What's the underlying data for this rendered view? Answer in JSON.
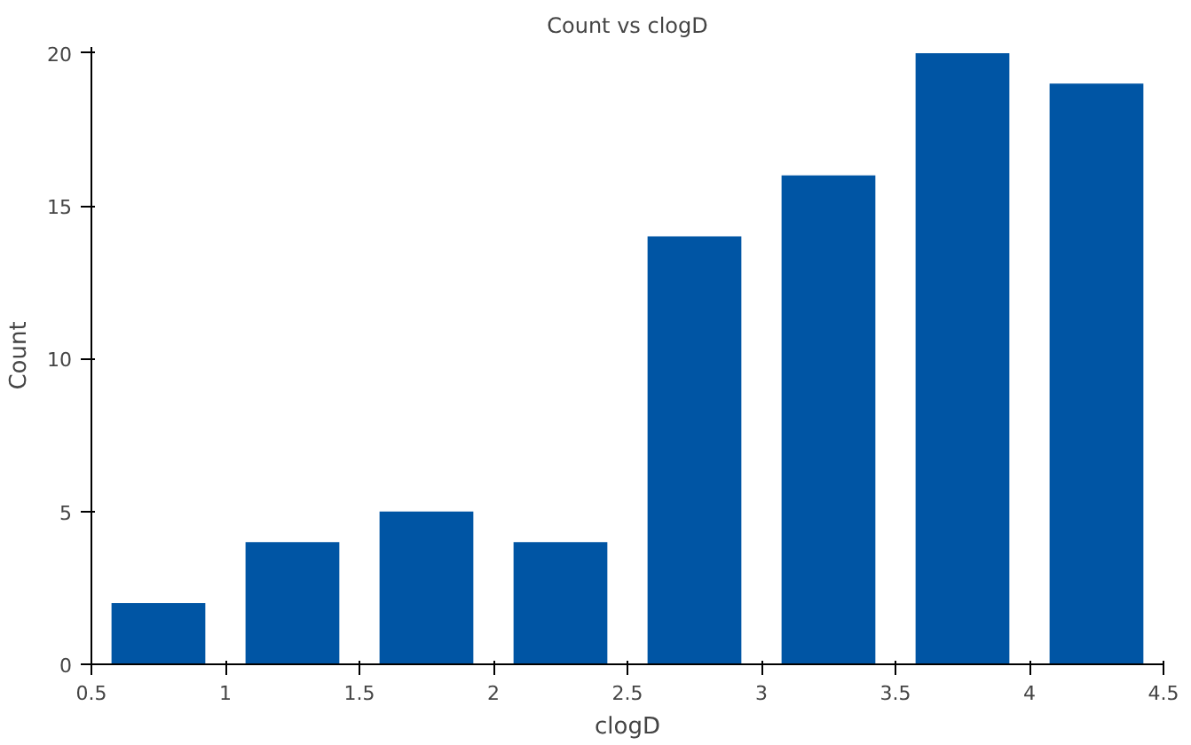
{
  "chart_data": {
    "type": "bar",
    "title": "Count vs clogD",
    "xlabel": "clogD",
    "ylabel": "Count",
    "x": [
      0.75,
      1.25,
      1.75,
      2.25,
      2.75,
      3.25,
      3.75,
      4.25
    ],
    "values": [
      2,
      4,
      5,
      4,
      14,
      16,
      20,
      19
    ],
    "color": "#0055a4",
    "xlim": [
      0.5,
      4.5
    ],
    "xticks": [
      0.5,
      1,
      1.5,
      2,
      2.5,
      3,
      3.5,
      4,
      4.5
    ],
    "ylim": [
      0,
      20.2
    ],
    "yticks": [
      0,
      5,
      10,
      15,
      20
    ],
    "grid": false
  }
}
